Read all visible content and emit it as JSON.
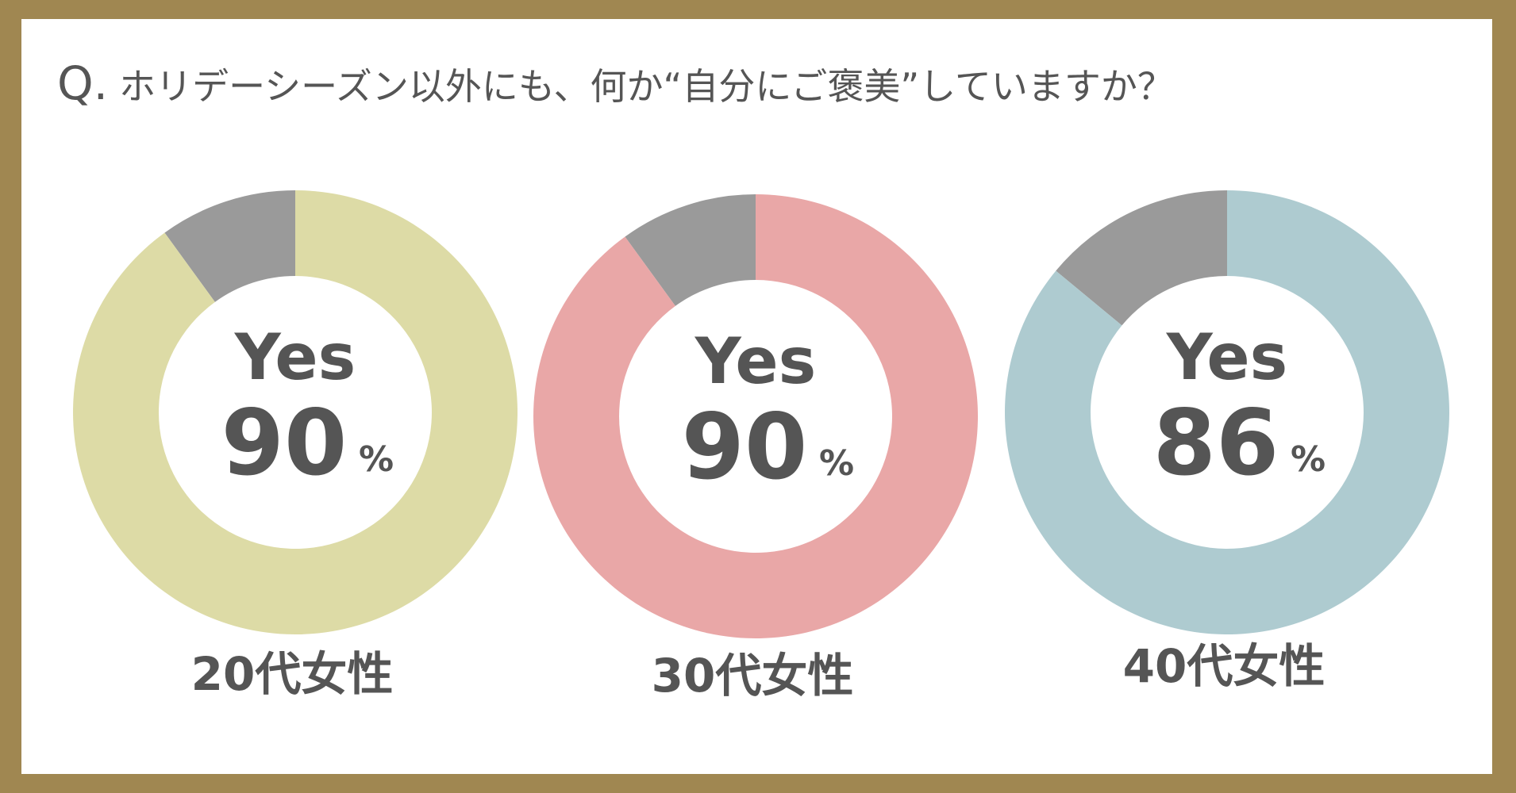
{
  "question": {
    "mark": "Q.",
    "text": "ホリデーシーズン以外にも、何か“自分にご褒美”していますか？"
  },
  "chart_data": [
    {
      "type": "pie",
      "group": "20代女性",
      "center_label": "Yes",
      "yes_value": 90,
      "unit": "%",
      "slices": [
        {
          "label": "Yes",
          "value": 90,
          "color": "#dddba6"
        },
        {
          "label": "",
          "value": 10,
          "color": "#9a9a9a"
        }
      ]
    },
    {
      "type": "pie",
      "group": "30代女性",
      "center_label": "Yes",
      "yes_value": 90,
      "unit": "%",
      "slices": [
        {
          "label": "Yes",
          "value": 90,
          "color": "#e9a7a7"
        },
        {
          "label": "",
          "value": 10,
          "color": "#9a9a9a"
        }
      ]
    },
    {
      "type": "pie",
      "group": "40代女性",
      "center_label": "Yes",
      "yes_value": 86,
      "unit": "%",
      "slices": [
        {
          "label": "Yes",
          "value": 86,
          "color": "#aecbd0"
        },
        {
          "label": "",
          "value": 14,
          "color": "#9a9a9a"
        }
      ]
    }
  ],
  "colors": {
    "frame": "#a08751",
    "background": "#ffffff",
    "text": "#555555"
  }
}
